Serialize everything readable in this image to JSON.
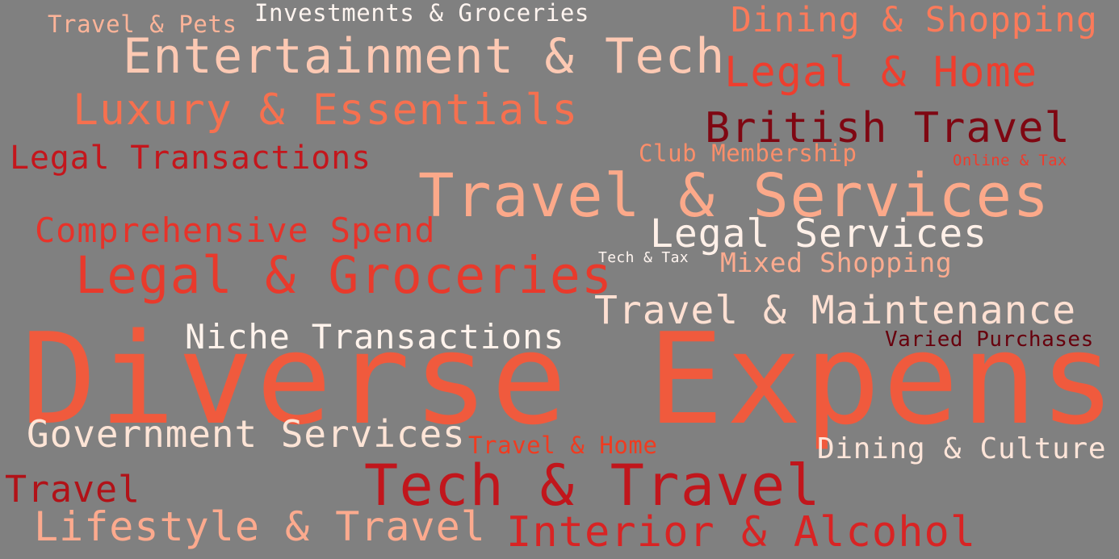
{
  "background": "#808080",
  "words": [
    {
      "text": "Diverse Expenses",
      "color": "#f05a3d"
    },
    {
      "text": "Travel & Services",
      "color": "#fca98a"
    },
    {
      "text": "Tech & Travel",
      "color": "#c1161c"
    },
    {
      "text": "Entertainment & Tech",
      "color": "#fdc9b3"
    },
    {
      "text": "Legal & Groceries",
      "color": "#e83a2c"
    },
    {
      "text": "Luxury & Essentials",
      "color": "#f6704f"
    },
    {
      "text": "Legal & Home",
      "color": "#ee3e2e"
    },
    {
      "text": "British Travel",
      "color": "#7f0712"
    },
    {
      "text": "Interior & Alcohol",
      "color": "#d82424"
    },
    {
      "text": "Travel & Maintenance",
      "color": "#fee0d2"
    },
    {
      "text": "Lifestyle & Travel",
      "color": "#fcaa8e"
    },
    {
      "text": "Government Services",
      "color": "#fde4d6"
    },
    {
      "text": "Legal Services",
      "color": "#fff0e8"
    },
    {
      "text": "Niche Transactions",
      "color": "#fff3ec"
    },
    {
      "text": "Comprehensive Spend",
      "color": "#e6332a"
    },
    {
      "text": "Legal Transactions",
      "color": "#c4161c"
    },
    {
      "text": "Dining & Shopping",
      "color": "#fb7a5a"
    },
    {
      "text": "Travel",
      "color": "#b11218"
    },
    {
      "text": "Dining & Culture",
      "color": "#fee5d9"
    },
    {
      "text": "Mixed Shopping",
      "color": "#fcab8f"
    },
    {
      "text": "Investments & Groceries",
      "color": "#fff5f0"
    },
    {
      "text": "Travel & Pets",
      "color": "#fcb499"
    },
    {
      "text": "Travel & Home",
      "color": "#f03b20"
    },
    {
      "text": "Club Membership",
      "color": "#fb8e6a"
    },
    {
      "text": "Varied Purchases",
      "color": "#67000d"
    },
    {
      "text": "Online & Tax",
      "color": "#ef3b2c"
    },
    {
      "text": "Tech & Tax",
      "color": "#fff5f0"
    }
  ]
}
